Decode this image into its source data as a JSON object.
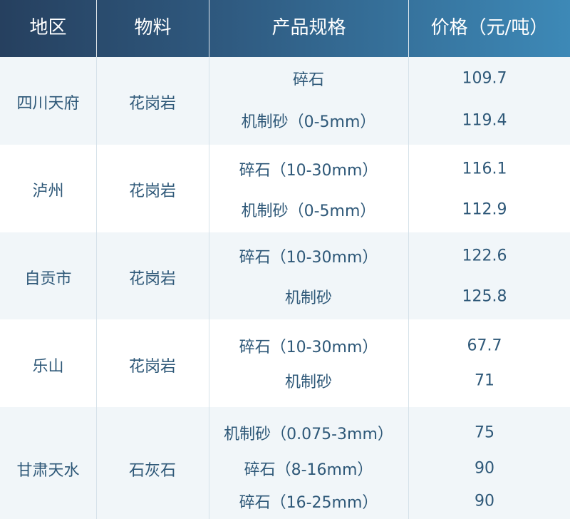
{
  "header": {
    "region": "地区",
    "material": "物料",
    "spec": "产品规格",
    "price": "价格（元/吨）"
  },
  "colors": {
    "header_start": "#26405f",
    "header_end": "#3d89b7",
    "row_tint": "#f1f6f9",
    "text": "#2e5878"
  },
  "groups": [
    {
      "region": "四川天府",
      "material": "花岗岩",
      "items": [
        {
          "spec": "碎石",
          "price": "109.7"
        },
        {
          "spec": "机制砂（0-5mm）",
          "price": "119.4"
        }
      ]
    },
    {
      "region": "泸州",
      "material": "花岗岩",
      "items": [
        {
          "spec": "碎石（10-30mm）",
          "price": "116.1"
        },
        {
          "spec": "机制砂（0-5mm）",
          "price": "112.9"
        }
      ]
    },
    {
      "region": "自贡市",
      "material": "花岗岩",
      "items": [
        {
          "spec": "碎石（10-30mm）",
          "price": "122.6"
        },
        {
          "spec": "机制砂",
          "price": "125.8"
        }
      ]
    },
    {
      "region": "乐山",
      "material": "花岗岩",
      "items": [
        {
          "spec": "碎石（10-30mm）",
          "price": "67.7"
        },
        {
          "spec": "机制砂",
          "price": "71"
        }
      ]
    },
    {
      "region": "甘肃天水",
      "material": "石灰石",
      "items": [
        {
          "spec": "机制砂（0.075-3mm）",
          "price": "75"
        },
        {
          "spec": "碎石（8-16mm）",
          "price": "90"
        },
        {
          "spec": "碎石（16-25mm）",
          "price": "90"
        }
      ]
    }
  ]
}
